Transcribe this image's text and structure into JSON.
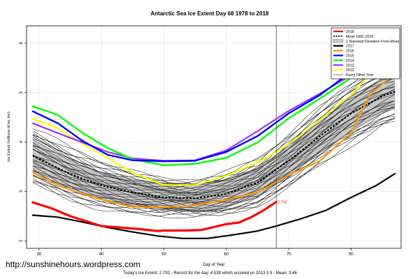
{
  "chart_data": {
    "type": "line",
    "title": "Antarctic Sea Ice Extent Day 68 1978 to 2018",
    "xlabel": "Day of Year",
    "ylabel": "Ice Extent (millions of sq. km)",
    "xlim": [
      28,
      88
    ],
    "ylim": [
      1.85,
      6.35
    ],
    "xticks": [
      30,
      40,
      50,
      60,
      70,
      80
    ],
    "yticks": [
      2,
      3,
      4,
      5,
      6
    ],
    "grid": true,
    "legend_position": "top-right",
    "current_day": 68,
    "current_value_label": "2.792",
    "mean": {
      "name": "Mean 1981-2010",
      "color": "#000000",
      "x": [
        29,
        35,
        40,
        45,
        50,
        55,
        60,
        65,
        70,
        75,
        80,
        85,
        87
      ],
      "y": [
        3.72,
        3.35,
        3.12,
        2.98,
        2.88,
        2.86,
        2.95,
        3.18,
        3.62,
        4.12,
        4.58,
        4.93,
        5.02
      ]
    },
    "band": {
      "name": "1 Standard Deviation From Mean",
      "color": "#c8c8c8",
      "x": [
        29,
        35,
        40,
        45,
        50,
        55,
        60,
        65,
        70,
        75,
        80,
        85,
        87
      ],
      "upper": [
        4.05,
        3.62,
        3.38,
        3.25,
        3.16,
        3.15,
        3.24,
        3.46,
        3.93,
        4.45,
        4.93,
        5.28,
        5.42
      ],
      "lower": [
        3.38,
        3.07,
        2.84,
        2.71,
        2.61,
        2.59,
        2.68,
        2.9,
        3.31,
        3.79,
        4.22,
        4.58,
        4.68
      ]
    },
    "series": [
      {
        "name": "2018",
        "color": "#ff0000",
        "width": 3.2,
        "x": [
          29,
          32,
          35,
          38,
          40,
          43,
          46,
          49,
          50,
          53,
          56,
          58,
          60,
          62,
          64,
          66,
          68
        ],
        "y": [
          2.78,
          2.66,
          2.5,
          2.38,
          2.3,
          2.27,
          2.24,
          2.2,
          2.21,
          2.21,
          2.22,
          2.28,
          2.34,
          2.37,
          2.48,
          2.62,
          2.79
        ]
      },
      {
        "name": "2017",
        "color": "#000000",
        "width": 2.2,
        "x": [
          29,
          33,
          37,
          41,
          45,
          49,
          53,
          57,
          61,
          65,
          68,
          72,
          76,
          80,
          84,
          87
        ],
        "y": [
          2.52,
          2.48,
          2.38,
          2.27,
          2.18,
          2.1,
          2.05,
          2.05,
          2.12,
          2.2,
          2.3,
          2.45,
          2.62,
          2.88,
          3.12,
          3.36
        ]
      },
      {
        "name": "2016",
        "color": "#ff9900",
        "width": 2.2,
        "x": [
          29,
          33,
          37,
          41,
          45,
          50,
          55,
          60,
          65,
          70,
          75,
          80,
          83,
          86,
          87
        ],
        "y": [
          3.38,
          3.12,
          2.95,
          2.8,
          2.69,
          2.68,
          2.72,
          2.83,
          2.98,
          3.33,
          3.62,
          4.18,
          4.95,
          5.28,
          5.42
        ]
      },
      {
        "name": "2015",
        "color": "#0000ff",
        "width": 2.4,
        "x": [
          29,
          33,
          37,
          41,
          45,
          50,
          55,
          60,
          65,
          70,
          75,
          80,
          84,
          87
        ],
        "y": [
          4.62,
          4.38,
          4.02,
          3.74,
          3.63,
          3.61,
          3.62,
          3.8,
          4.12,
          4.58,
          4.95,
          5.42,
          5.88,
          6.12
        ]
      },
      {
        "name": "2014",
        "color": "#00ff00",
        "width": 2.4,
        "x": [
          29,
          33,
          37,
          41,
          45,
          50,
          55,
          60,
          65,
          70,
          75,
          80,
          84,
          87
        ],
        "y": [
          4.72,
          4.55,
          4.18,
          3.88,
          3.65,
          3.53,
          3.56,
          3.68,
          3.99,
          4.48,
          4.88,
          5.3,
          5.82,
          6.2
        ]
      },
      {
        "name": "2013",
        "color": "#9933ff",
        "width": 2.2,
        "x": [
          29,
          33,
          37,
          41,
          45,
          50,
          55,
          60,
          65,
          70,
          75,
          80,
          84,
          87
        ],
        "y": [
          4.38,
          4.18,
          3.99,
          3.8,
          3.67,
          3.62,
          3.63,
          3.83,
          4.22,
          4.63,
          4.98,
          5.35,
          5.62,
          5.84
        ]
      },
      {
        "name": "2012",
        "color": "#ffff00",
        "width": 2.2,
        "x": [
          29,
          33,
          37,
          41,
          45,
          50,
          55,
          60,
          65,
          70,
          75,
          80,
          84,
          87
        ],
        "y": [
          4.47,
          4.28,
          3.96,
          3.68,
          3.38,
          3.13,
          3.13,
          3.32,
          3.58,
          3.95,
          4.45,
          4.95,
          5.5,
          5.73
        ]
      }
    ],
    "other_years": {
      "name": "Every Other Year",
      "color": "#1a1a1a",
      "count": 34
    },
    "legend": [
      "2018",
      "Mean 1981-2010",
      "1 Standard Deviation From Mean",
      "2017",
      "2016",
      "2015",
      "2014",
      "2013",
      "2012",
      "Every Other Year"
    ]
  },
  "page": {
    "watermark": "http://sunshinehours.wordpress.com",
    "footer": "Today's Ice Extent: 2.792  -  Record for the day: 4.539 which occured on 2013 3 9  -  Mean: 3.46"
  }
}
